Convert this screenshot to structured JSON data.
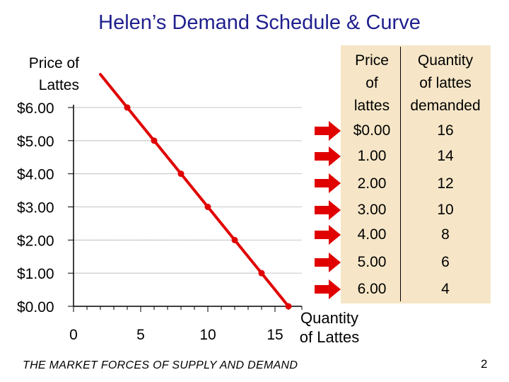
{
  "slide": {
    "title": "Helen’s Demand Schedule & Curve",
    "footer": "THE MARKET FORCES OF SUPPLY AND DEMAND",
    "page_number": "2"
  },
  "table": {
    "price_header": [
      "Price",
      "of",
      "lattes"
    ],
    "quantity_header": [
      "Quantity",
      "of lattes",
      "demanded"
    ],
    "rows": [
      {
        "price": "$0.00",
        "quantity": "16"
      },
      {
        "price": "1.00",
        "quantity": "14"
      },
      {
        "price": "2.00",
        "quantity": "12"
      },
      {
        "price": "3.00",
        "quantity": "10"
      },
      {
        "price": "4.00",
        "quantity": "8"
      },
      {
        "price": "5.00",
        "quantity": "6"
      },
      {
        "price": "6.00",
        "quantity": "4"
      }
    ],
    "background": "#f6e6c7",
    "arrow_color": "#e00000"
  },
  "chart_data": {
    "type": "line",
    "ylabel": [
      "Price of",
      "Lattes"
    ],
    "xlabel": [
      "Quantity",
      "of Lattes"
    ],
    "x": [
      4,
      6,
      8,
      10,
      12,
      14,
      16
    ],
    "y": [
      6,
      5,
      4,
      3,
      2,
      1,
      0
    ],
    "xlim": [
      0,
      17
    ],
    "ylim": [
      0,
      6
    ],
    "x_ticks": [
      0,
      5,
      10,
      15
    ],
    "x_tick_labels": [
      "0",
      "5",
      "10",
      "15"
    ],
    "y_ticks": [
      0,
      1,
      2,
      3,
      4,
      5,
      6
    ],
    "y_tick_labels": [
      "$0.00",
      "$1.00",
      "$2.00",
      "$3.00",
      "$4.00",
      "$5.00",
      "$6.00"
    ],
    "line_extends_to_x": 2,
    "line_color": "#e00000",
    "gridlines": "horizontal"
  }
}
